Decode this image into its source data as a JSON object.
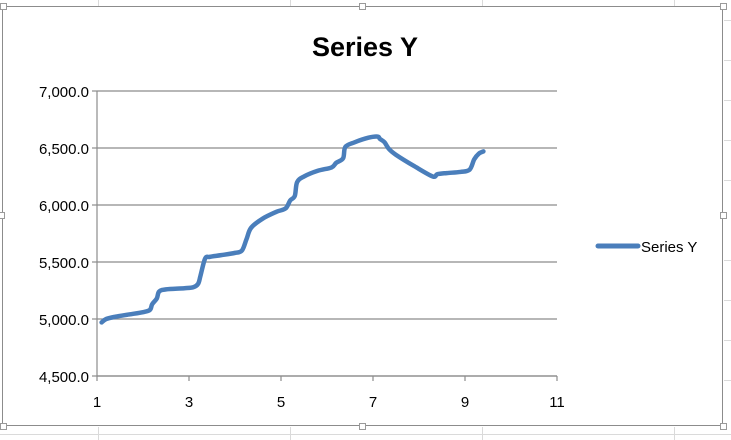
{
  "chart_data": {
    "type": "scatter",
    "title": "Series Y",
    "xlabel": "",
    "ylabel": "",
    "xlim": [
      1,
      11
    ],
    "ylim": [
      4500,
      7000
    ],
    "xticks": [
      1,
      3,
      5,
      7,
      9,
      11
    ],
    "yticks": [
      4500,
      5000,
      5500,
      6000,
      6500,
      7000
    ],
    "ytick_labels": [
      "4,500.0",
      "5,000.0",
      "5,500.0",
      "6,000.0",
      "6,500.0",
      "7,000.0"
    ],
    "xtick_labels": [
      "1",
      "3",
      "5",
      "7",
      "9",
      "11"
    ],
    "grid": "horizontal",
    "legend_position": "right",
    "series": [
      {
        "name": "Series Y",
        "color": "#4a7ebb",
        "smooth": true,
        "x": [
          1.1,
          1.2,
          1.4,
          1.7,
          2.0,
          2.15,
          2.2,
          2.3,
          2.35,
          2.5,
          2.9,
          3.1,
          3.2,
          3.25,
          3.35,
          3.45,
          3.7,
          4.0,
          4.15,
          4.25,
          4.35,
          4.6,
          4.9,
          5.1,
          5.2,
          5.3,
          5.35,
          5.5,
          5.8,
          6.1,
          6.2,
          6.35,
          6.4,
          6.6,
          6.9,
          7.1,
          7.15,
          7.25,
          7.35,
          7.5,
          7.9,
          8.3,
          8.4,
          8.6,
          8.9,
          9.1,
          9.2,
          9.3,
          9.4
        ],
        "y": [
          4970,
          5000,
          5020,
          5040,
          5060,
          5080,
          5130,
          5180,
          5240,
          5260,
          5270,
          5280,
          5310,
          5380,
          5530,
          5545,
          5560,
          5580,
          5600,
          5700,
          5800,
          5880,
          5940,
          5970,
          6040,
          6080,
          6200,
          6250,
          6300,
          6330,
          6370,
          6410,
          6510,
          6550,
          6590,
          6600,
          6580,
          6550,
          6490,
          6440,
          6340,
          6250,
          6270,
          6280,
          6290,
          6310,
          6400,
          6450,
          6470
        ]
      }
    ]
  }
}
